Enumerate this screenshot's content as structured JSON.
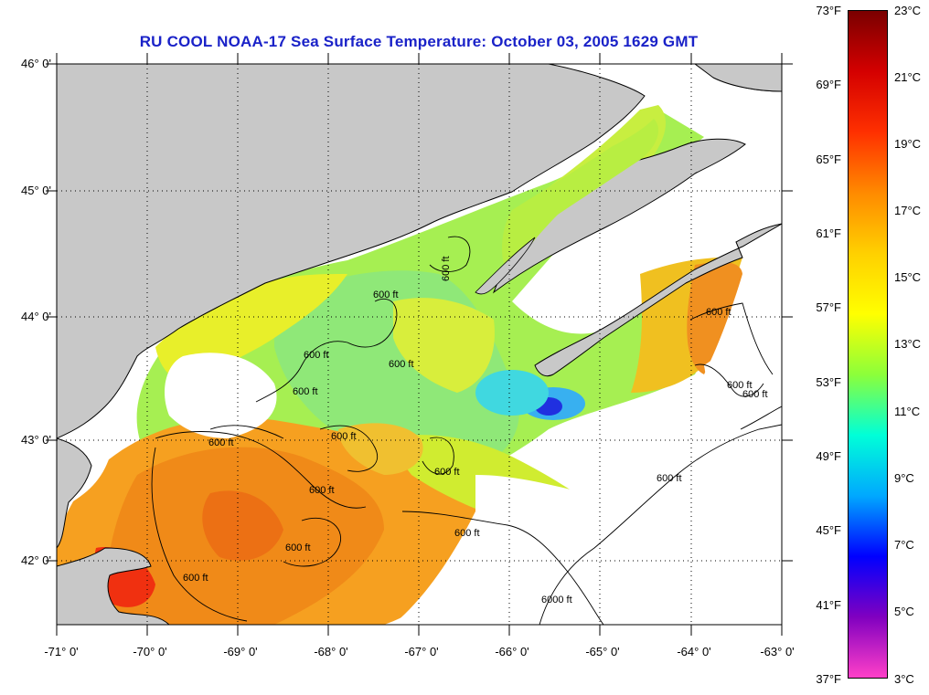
{
  "title": "RU COOL  NOAA-17  Sea Surface Temperature:  October 03, 2005 1629 GMT",
  "latitude_labels": [
    "46° 0'",
    "45° 0'",
    "44° 0'",
    "43° 0'",
    "42° 0'"
  ],
  "longitude_labels": [
    "-71° 0'",
    "-70° 0'",
    "-69° 0'",
    "-68° 0'",
    "-67° 0'",
    "-66° 0'",
    "-65° 0'",
    "-64° 0'",
    "-63° 0'"
  ],
  "contour_label": "600 ft",
  "contour_label_deep": "6000 ft",
  "colorbar": {
    "fahrenheit": [
      "73°F",
      "69°F",
      "65°F",
      "61°F",
      "57°F",
      "53°F",
      "49°F",
      "45°F",
      "41°F",
      "37°F"
    ],
    "celsius": [
      "23°C",
      "21°C",
      "19°C",
      "17°C",
      "15°C",
      "13°C",
      "11°C",
      "9°C",
      "7°C",
      "5°C",
      "3°C"
    ]
  },
  "colors": {
    "land": "#c8c8c8",
    "no_data": "#ffffff",
    "title": "#1a22c8",
    "colorbar_stops": [
      "#7a0000",
      "#d40000",
      "#ff3000",
      "#ff8a00",
      "#ffd000",
      "#ffff00",
      "#8cff3a",
      "#00ffd8",
      "#00a8ff",
      "#0000ff",
      "#8000c0",
      "#ff40c8"
    ]
  }
}
